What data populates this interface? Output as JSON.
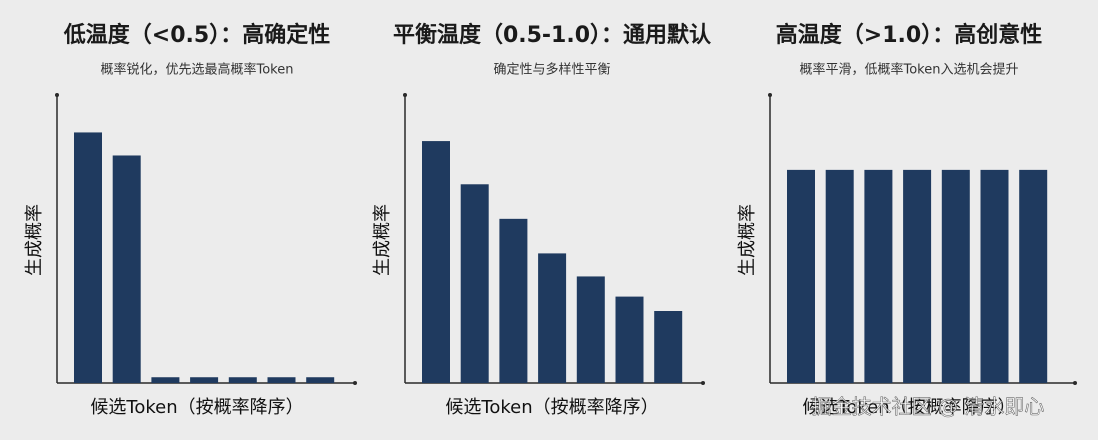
{
  "chart_data": [
    {
      "type": "bar",
      "title": "低温度（<0.5）：高确定性",
      "subtitle": "概率锐化，优先选最高概率Token",
      "x_label": "候选Token（按概率降序）",
      "y_label": "生成概率",
      "categories": [
        null,
        null,
        null,
        null,
        null,
        null,
        null
      ],
      "values": [
        87,
        79,
        2,
        2,
        2,
        2,
        2
      ],
      "color": "#1f3a5f",
      "ylim": [
        0,
        100
      ]
    },
    {
      "type": "bar",
      "title": "平衡温度（0.5-1.0）：通用默认",
      "subtitle": "确定性与多样性平衡",
      "x_label": "候选Token（按概率降序）",
      "y_label": "生成概率",
      "categories": [
        null,
        null,
        null,
        null,
        null,
        null,
        null
      ],
      "values": [
        84,
        69,
        57,
        45,
        37,
        30,
        25
      ],
      "color": "#1f3a5f",
      "ylim": [
        0,
        100
      ]
    },
    {
      "type": "bar",
      "title": "高温度（>1.0）：高创意性",
      "subtitle": "概率平滑，低概率Token入选机会提升",
      "x_label": "候选Token（按概率降序）",
      "y_label": "生成概率",
      "categories": [
        null,
        null,
        null,
        null,
        null,
        null,
        null
      ],
      "values": [
        74,
        74,
        74,
        74,
        74,
        74,
        74
      ],
      "color": "#1f3a5f",
      "ylim": [
        0,
        100
      ]
    }
  ],
  "watermark": "掘金技术社区 @ 清水即心"
}
